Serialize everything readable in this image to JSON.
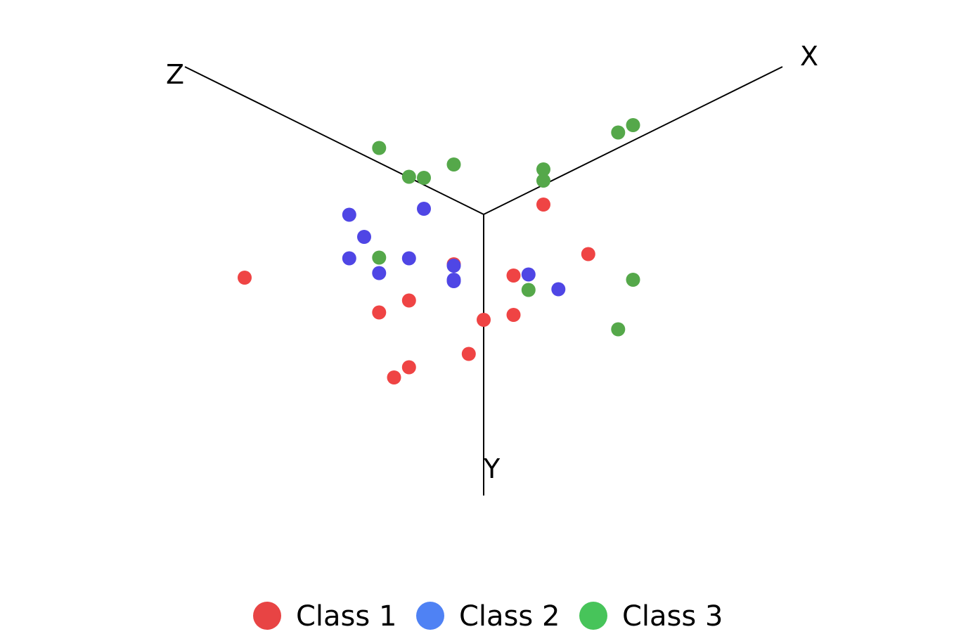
{
  "chart_data": {
    "type": "scatter",
    "projection": "3d-isometric",
    "axes": {
      "x": {
        "label": "X"
      },
      "y": {
        "label": "Y"
      },
      "z": {
        "label": "Z"
      }
    },
    "legend_position": "bottom-center",
    "series": [
      {
        "name": "Class 1",
        "marker_color": "#ef4444",
        "legend_color": "#e84444",
        "points": [
          {
            "x": 0.8,
            "y": 0.7,
            "z": 0.6
          },
          {
            "x": 0.9,
            "y": 1.25,
            "z": 0.8
          },
          {
            "x": 0.35,
            "y": 0.9,
            "z": 0.7
          },
          {
            "x": 0.5,
            "y": 1.2,
            "z": 0.75
          },
          {
            "x": 0.55,
            "y": 1.1,
            "z": 0.6
          },
          {
            "x": 0.85,
            "y": 0.85,
            "z": 0.5
          },
          {
            "x": 0.5,
            "y": 0.9,
            "z": 0.5
          },
          {
            "x": 0.4,
            "y": 0.65,
            "z": 0.5
          },
          {
            "x": 0.25,
            "y": 0.7,
            "z": 0.5
          },
          {
            "x": 0.1,
            "y": 0.75,
            "z": 0.9
          },
          {
            "x": 0.25,
            "y": 1.0,
            "z": 0.55
          },
          {
            "x": 0.7,
            "y": 0.9,
            "z": 0.6
          }
        ]
      },
      {
        "name": "Class 2",
        "marker_color": "#4f46e5",
        "legend_color": "#4f82f4",
        "points": [
          {
            "x": 0.2,
            "y": 0.5,
            "z": 0.6
          },
          {
            "x": 0.25,
            "y": 0.55,
            "z": 0.5
          },
          {
            "x": 0.3,
            "y": 0.55,
            "z": 0.4
          },
          {
            "x": 0.2,
            "y": 0.5,
            "z": 0.3
          },
          {
            "x": 0.3,
            "y": 0.45,
            "z": 0.15
          },
          {
            "x": 0.25,
            "y": 0.5,
            "z": 0.7
          },
          {
            "x": 0.3,
            "y": 0.45,
            "z": 0.05
          },
          {
            "x": 0.3,
            "y": 0.4,
            "z": 0.5
          },
          {
            "x": 0.15,
            "y": 0.55,
            "z": 0.6
          },
          {
            "x": 0.15,
            "y": 0.55,
            "z": 0.5
          },
          {
            "x": 0.3,
            "y": 0.6,
            "z": 0.4
          }
        ]
      },
      {
        "name": "Class 3",
        "marker_color": "#55a84a",
        "legend_color": "#47c45a",
        "points": [
          {
            "x": 0.05,
            "y": 0.05,
            "z": 0.3
          },
          {
            "x": 0.05,
            "y": 0.0,
            "z": 0.4
          },
          {
            "x": 0.3,
            "y": 0.05,
            "z": 0.1
          },
          {
            "x": 0.55,
            "y": 0.05,
            "z": 0.1
          },
          {
            "x": 0.6,
            "y": 0.05,
            "z": 0.1
          },
          {
            "x": 0.5,
            "y": 0.3,
            "z": 0.3
          },
          {
            "x": 0.2,
            "y": 0.4,
            "z": 0.05
          },
          {
            "x": 0.5,
            "y": 0.5,
            "z": 0.7
          },
          {
            "x": 0.6,
            "y": 0.6,
            "z": 0.1
          },
          {
            "x": 0.55,
            "y": 0.75,
            "z": 0.1
          },
          {
            "x": 0.25,
            "y": 0.6,
            "z": 0.6
          },
          {
            "x": 0.5,
            "y": 0.4,
            "z": 0.6
          }
        ]
      }
    ]
  }
}
